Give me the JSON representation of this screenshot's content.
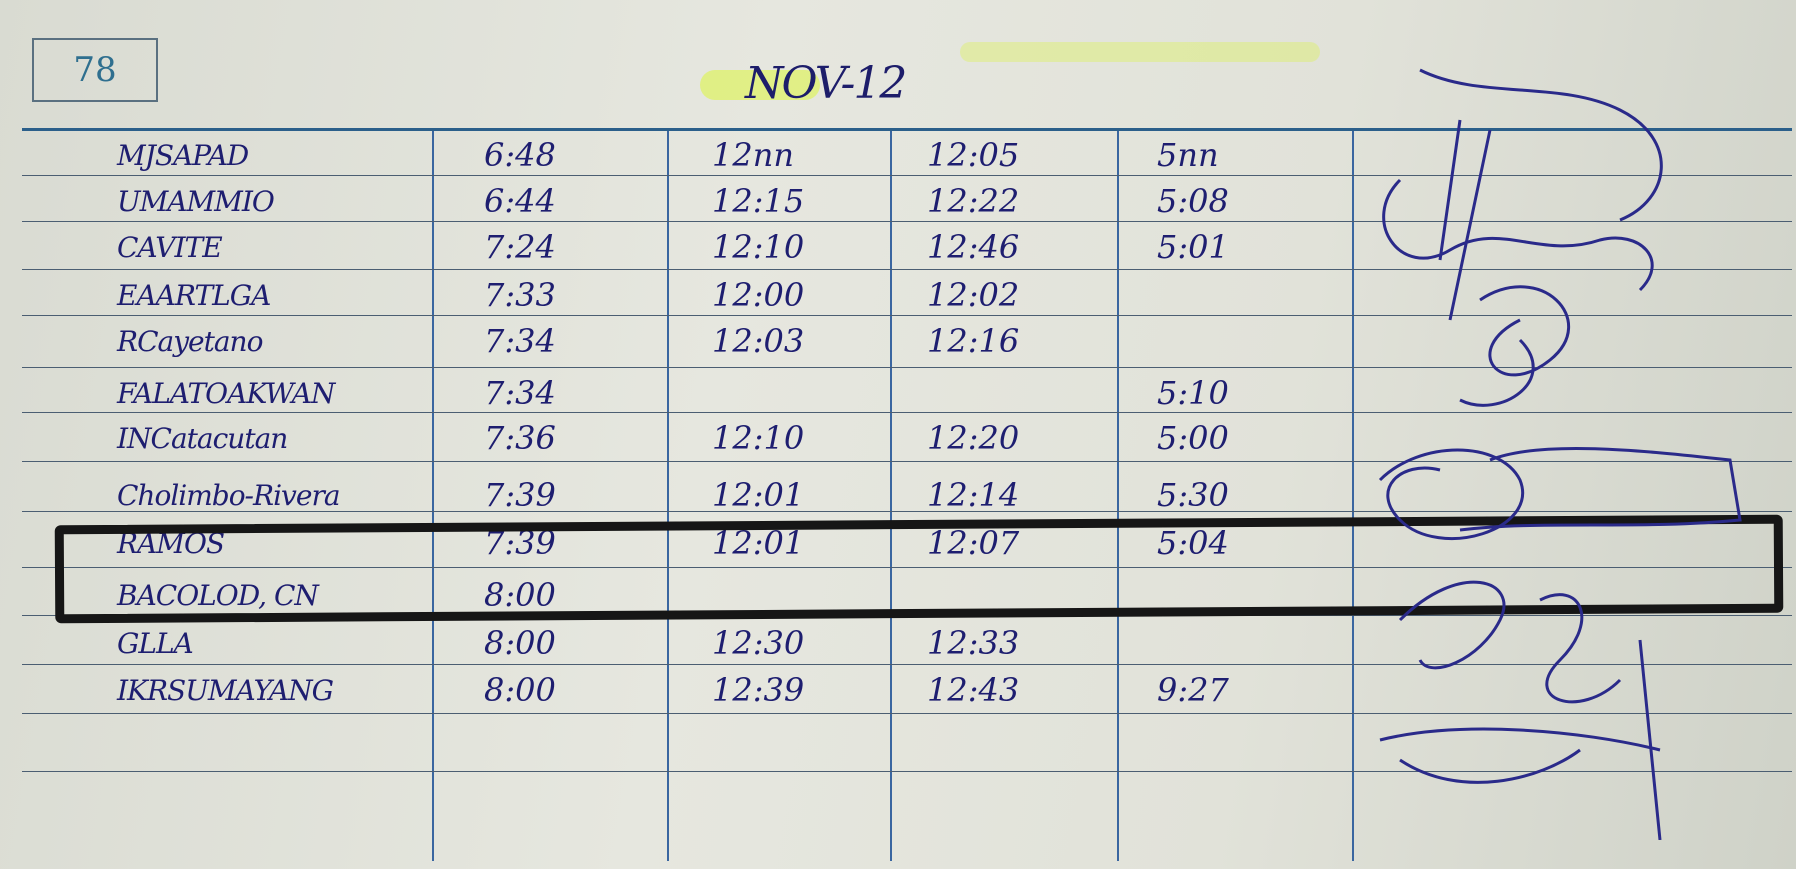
{
  "page_number": "78",
  "date": "NOV-12",
  "rows": [
    {
      "name": "MJSAPAD",
      "in_am": "6:48",
      "out_am": "12nn",
      "in_pm": "12:05",
      "out_pm": "5nn"
    },
    {
      "name": "UMAMMIO",
      "in_am": "6:44",
      "out_am": "12:15",
      "in_pm": "12:22",
      "out_pm": "5:08"
    },
    {
      "name": "CAVITE",
      "in_am": "7:24",
      "out_am": "12:10",
      "in_pm": "12:46",
      "out_pm": "5:01"
    },
    {
      "name": "EAARTLGA",
      "in_am": "7:33",
      "out_am": "12:00",
      "in_pm": "12:02",
      "out_pm": ""
    },
    {
      "name": "RCayetano",
      "in_am": "7:34",
      "out_am": "12:03",
      "in_pm": "12:16",
      "out_pm": ""
    },
    {
      "name": "FALATOAKWAN",
      "in_am": "7:34",
      "out_am": "",
      "in_pm": "",
      "out_pm": "5:10"
    },
    {
      "name": "INCatacutan",
      "in_am": "7:36",
      "out_am": "12:10",
      "in_pm": "12:20",
      "out_pm": "5:00"
    },
    {
      "name": "Cholimbo-Rivera",
      "in_am": "7:39",
      "out_am": "12:01",
      "in_pm": "12:14",
      "out_pm": "5:30"
    },
    {
      "name": "RAMOS",
      "in_am": "7:39",
      "out_am": "12:01",
      "in_pm": "12:07",
      "out_pm": "5:04"
    },
    {
      "name": "BACOLOD, CN",
      "in_am": "8:00",
      "out_am": "",
      "in_pm": "",
      "out_pm": ""
    },
    {
      "name": "GLLA",
      "in_am": "8:00",
      "out_am": "12:30",
      "in_pm": "12:33",
      "out_pm": ""
    },
    {
      "name": "IKRSUMAYANG",
      "in_am": "8:00",
      "out_am": "12:39",
      "in_pm": "12:43",
      "out_pm": "9:27"
    }
  ],
  "ink_color": "#1e1e70",
  "highlight_color": "#dcf53c",
  "redaction_box_color": "#161616"
}
